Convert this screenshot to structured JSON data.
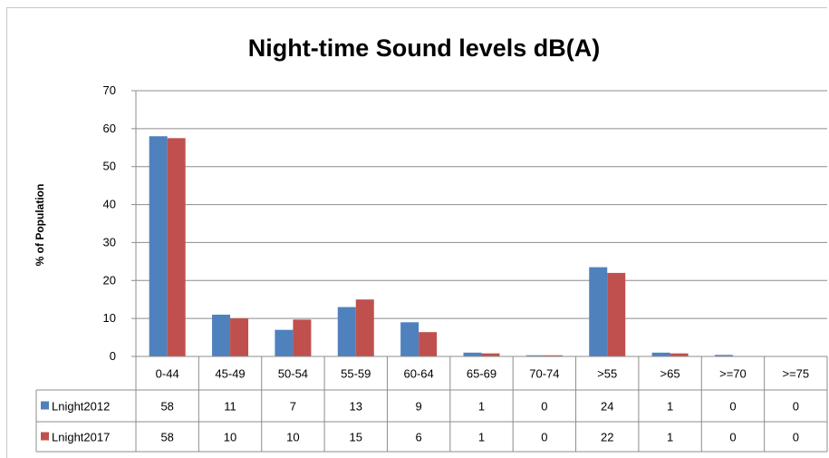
{
  "chart_data": {
    "type": "bar",
    "title": "Night-time Sound levels dB(A)",
    "ylabel": "% of Population",
    "xlabel": "",
    "ylim": [
      0,
      70
    ],
    "yticks": [
      0,
      10,
      20,
      30,
      40,
      50,
      60,
      70
    ],
    "grid": true,
    "legend": "data-table",
    "categories": [
      "0-44",
      "45-49",
      "50-54",
      "55-59",
      "60-64",
      "65-69",
      "70-74",
      ">55",
      ">65",
      ">=70",
      ">=75"
    ],
    "series": [
      {
        "name": "Lnight2012",
        "color": "#4f81bd",
        "values": [
          58,
          11,
          7,
          13,
          9,
          1,
          0.3,
          23.5,
          1,
          0.4,
          0
        ],
        "table": [
          "58",
          "11",
          "7",
          "13",
          "9",
          "1",
          "0",
          "24",
          "1",
          "0",
          "0"
        ]
      },
      {
        "name": "Lnight2017",
        "color": "#c0504d",
        "values": [
          57.5,
          10,
          9.7,
          15,
          6.4,
          0.8,
          0.3,
          22,
          0.8,
          0,
          0
        ],
        "table": [
          "58",
          "10",
          "10",
          "15",
          "6",
          "1",
          "0",
          "22",
          "1",
          "0",
          "0"
        ]
      }
    ]
  }
}
